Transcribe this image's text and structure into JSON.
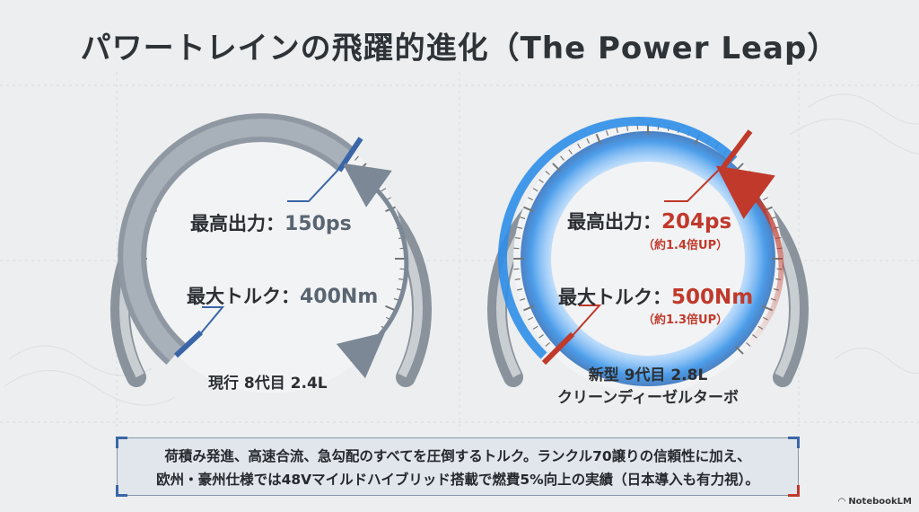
{
  "title": "パワートレインの飛躍的進化（The Power Leap）",
  "current": {
    "power_label": "最高出力：",
    "power_value": "150ps",
    "torque_label": "最大トルク：",
    "torque_value": "400Nm",
    "caption": "現行 8代目 2.4L"
  },
  "new": {
    "power_label": "最高出力：",
    "power_value": "204ps",
    "power_gain": "（約1.4倍UP）",
    "torque_label": "最大トルク：",
    "torque_value": "500Nm",
    "torque_gain": "（約1.3倍UP）",
    "caption_line1": "新型 9代目 2.8L",
    "caption_line2": "クリーンディーゼルターボ"
  },
  "note": {
    "line1": "荷積み発進、高速合流、急勾配のすべてを圧倒するトルク。ランクル70譲りの信頼性に加え、",
    "line2": "欧州・豪州仕様では48Vマイルドハイブリッド搭載で燃費5%向上の実績（日本導入も有力視）。"
  },
  "brand": "NotebookLM",
  "colors": {
    "old_accent": "#3a66a8",
    "new_accent": "#c0392b",
    "new_glow": "#2f8ee8"
  }
}
